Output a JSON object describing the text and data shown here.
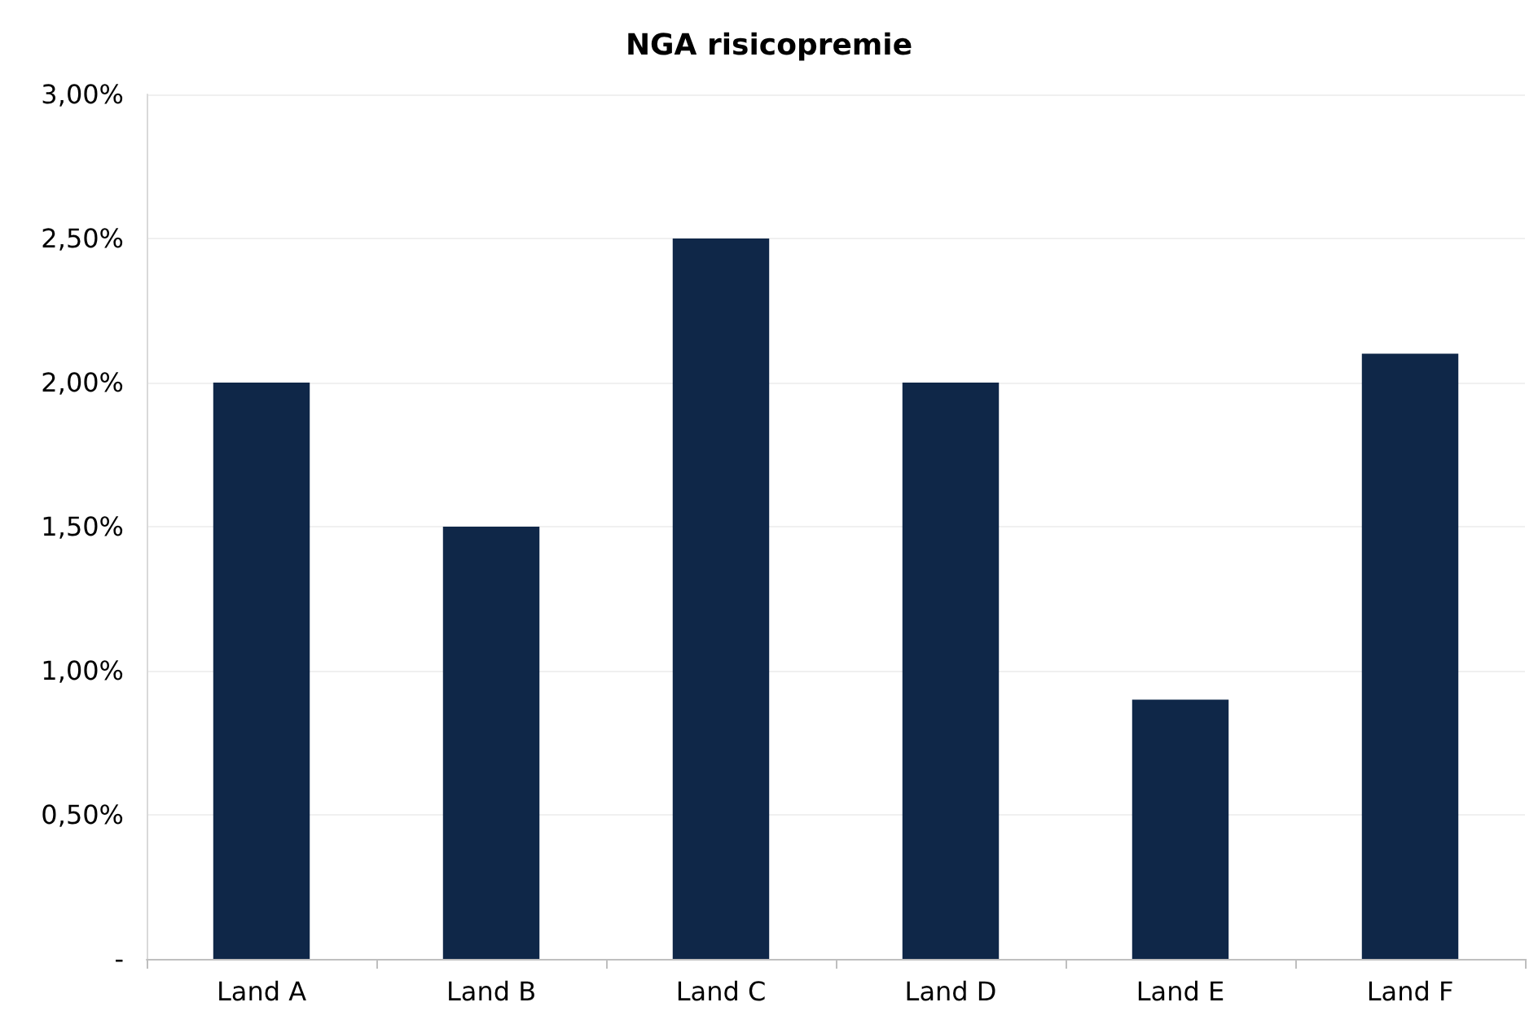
{
  "chart_data": {
    "type": "bar",
    "title": "NGA risicopremie",
    "categories": [
      "Land A",
      "Land B",
      "Land C",
      "Land D",
      "Land E",
      "Land F"
    ],
    "values": [
      2.0,
      1.5,
      2.5,
      2.0,
      0.9,
      2.1
    ],
    "color": "#0f2748",
    "ylim": [
      0,
      3
    ],
    "yticks": [
      {
        "value": 0,
        "label": "-"
      },
      {
        "value": 0.5,
        "label": "0,50%"
      },
      {
        "value": 1,
        "label": "1,00%"
      },
      {
        "value": 1.5,
        "label": "1,50%"
      },
      {
        "value": 2,
        "label": "2,00%"
      },
      {
        "value": 2.5,
        "label": "2,50%"
      },
      {
        "value": 3,
        "label": "3,00%"
      }
    ],
    "grid": "y"
  }
}
